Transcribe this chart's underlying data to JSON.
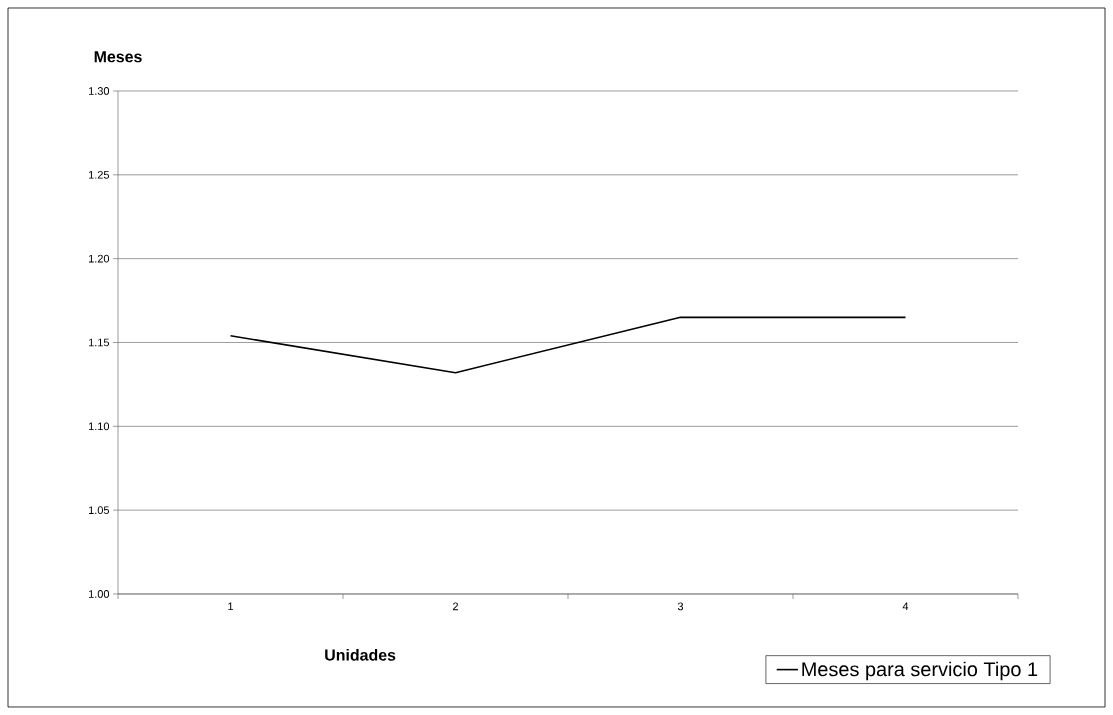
{
  "chart_data": {
    "type": "line",
    "xlabel": "Unidades",
    "ylabel": "Meses",
    "categories": [
      "1",
      "2",
      "3",
      "4"
    ],
    "series": [
      {
        "name": "Meses para servicio Tipo 1",
        "color": "#000000",
        "values": [
          1.154,
          1.132,
          1.165,
          1.165
        ]
      }
    ],
    "ylim": [
      1.0,
      1.3
    ],
    "yticks": [
      {
        "value": 1.0,
        "label": "1.00"
      },
      1.05,
      {
        "value": 1.1,
        "label": "1.10"
      },
      1.15,
      {
        "value": 1.2,
        "label": "1.20"
      },
      1.25,
      {
        "value": 1.3,
        "label": "1.30"
      }
    ],
    "grid": "y",
    "legend": "bottom right",
    "marker": "none",
    "line_style": "solid"
  }
}
